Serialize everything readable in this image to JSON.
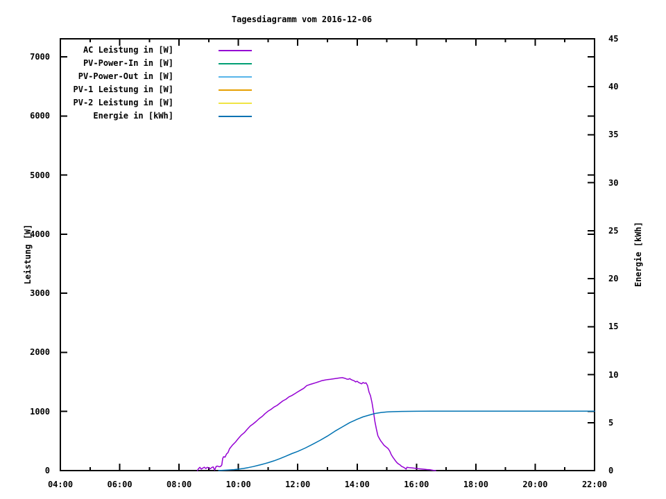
{
  "chart_data": {
    "type": "line",
    "title": "Tagesdiagramm vom 2016-12-06",
    "xlabel": "",
    "ylabel": "Leistung [W]",
    "y2label": "Energie [kWh]",
    "xlim": [
      4,
      22
    ],
    "ylim": [
      0,
      7305
    ],
    "y2lim": [
      0,
      45
    ],
    "grid": false,
    "legend_position": "top-left-inside",
    "x_ticks": {
      "values": [
        4,
        6,
        8,
        10,
        12,
        14,
        16,
        18,
        20,
        22
      ],
      "labels": [
        "04:00",
        "06:00",
        "08:00",
        "10:00",
        "12:00",
        "14:00",
        "16:00",
        "18:00",
        "20:00",
        "22:00"
      ]
    },
    "x_minor_ticks": [
      5,
      7,
      9,
      11,
      13,
      15,
      17,
      19,
      21
    ],
    "y_ticks": {
      "values": [
        0,
        1000,
        2000,
        3000,
        4000,
        5000,
        6000,
        7000
      ],
      "labels": [
        "0",
        "1000",
        "2000",
        "3000",
        "4000",
        "5000",
        "6000",
        "7000"
      ]
    },
    "y2_ticks": {
      "values": [
        0,
        5,
        10,
        15,
        20,
        25,
        30,
        35,
        40,
        45
      ],
      "labels": [
        "0",
        "5",
        "10",
        "15",
        "20",
        "25",
        "30",
        "35",
        "40",
        "45"
      ]
    },
    "series": [
      {
        "name": "AC Leistung in [W]",
        "color": "#9400d3",
        "axis": "y1",
        "points": [
          [
            8.62,
            0
          ],
          [
            8.65,
            30
          ],
          [
            8.7,
            55
          ],
          [
            8.75,
            25
          ],
          [
            8.8,
            42
          ],
          [
            8.85,
            58
          ],
          [
            8.9,
            35
          ],
          [
            8.95,
            55
          ],
          [
            9.0,
            45
          ],
          [
            9.05,
            30
          ],
          [
            9.1,
            52
          ],
          [
            9.15,
            62
          ],
          [
            9.2,
            8
          ],
          [
            9.25,
            70
          ],
          [
            9.3,
            76
          ],
          [
            9.35,
            64
          ],
          [
            9.4,
            70
          ],
          [
            9.44,
            95
          ],
          [
            9.47,
            205
          ],
          [
            9.5,
            235
          ],
          [
            9.55,
            228
          ],
          [
            9.6,
            282
          ],
          [
            9.65,
            305
          ],
          [
            9.7,
            368
          ],
          [
            9.8,
            432
          ],
          [
            9.9,
            482
          ],
          [
            10.0,
            545
          ],
          [
            10.1,
            600
          ],
          [
            10.2,
            642
          ],
          [
            10.3,
            700
          ],
          [
            10.4,
            755
          ],
          [
            10.5,
            792
          ],
          [
            10.6,
            832
          ],
          [
            10.7,
            880
          ],
          [
            10.8,
            916
          ],
          [
            10.9,
            965
          ],
          [
            11.0,
            1005
          ],
          [
            11.1,
            1036
          ],
          [
            11.2,
            1075
          ],
          [
            11.3,
            1102
          ],
          [
            11.4,
            1142
          ],
          [
            11.5,
            1180
          ],
          [
            11.6,
            1206
          ],
          [
            11.7,
            1246
          ],
          [
            11.8,
            1270
          ],
          [
            11.9,
            1300
          ],
          [
            12.0,
            1332
          ],
          [
            12.1,
            1362
          ],
          [
            12.2,
            1392
          ],
          [
            12.3,
            1438
          ],
          [
            12.4,
            1455
          ],
          [
            12.5,
            1470
          ],
          [
            12.6,
            1486
          ],
          [
            12.7,
            1502
          ],
          [
            12.8,
            1520
          ],
          [
            12.9,
            1530
          ],
          [
            13.0,
            1540
          ],
          [
            13.1,
            1546
          ],
          [
            13.2,
            1552
          ],
          [
            13.3,
            1560
          ],
          [
            13.4,
            1566
          ],
          [
            13.5,
            1572
          ],
          [
            13.6,
            1560
          ],
          [
            13.65,
            1548
          ],
          [
            13.7,
            1544
          ],
          [
            13.75,
            1556
          ],
          [
            13.8,
            1540
          ],
          [
            13.85,
            1528
          ],
          [
            13.9,
            1520
          ],
          [
            13.95,
            1500
          ],
          [
            14.0,
            1512
          ],
          [
            14.05,
            1492
          ],
          [
            14.1,
            1480
          ],
          [
            14.15,
            1468
          ],
          [
            14.2,
            1490
          ],
          [
            14.25,
            1478
          ],
          [
            14.3,
            1484
          ],
          [
            14.35,
            1438
          ],
          [
            14.4,
            1330
          ],
          [
            14.45,
            1268
          ],
          [
            14.5,
            1150
          ],
          [
            14.55,
            1000
          ],
          [
            14.6,
            830
          ],
          [
            14.65,
            700
          ],
          [
            14.7,
            590
          ],
          [
            14.75,
            540
          ],
          [
            14.8,
            500
          ],
          [
            14.85,
            468
          ],
          [
            14.9,
            432
          ],
          [
            14.95,
            410
          ],
          [
            15.0,
            390
          ],
          [
            15.05,
            368
          ],
          [
            15.1,
            330
          ],
          [
            15.15,
            270
          ],
          [
            15.2,
            230
          ],
          [
            15.25,
            195
          ],
          [
            15.3,
            160
          ],
          [
            15.35,
            130
          ],
          [
            15.4,
            110
          ],
          [
            15.45,
            95
          ],
          [
            15.5,
            72
          ],
          [
            15.55,
            60
          ],
          [
            15.6,
            45
          ],
          [
            15.65,
            25
          ],
          [
            15.68,
            56
          ],
          [
            15.75,
            50
          ],
          [
            15.85,
            46
          ],
          [
            15.95,
            40
          ],
          [
            16.05,
            32
          ],
          [
            16.15,
            28
          ],
          [
            16.25,
            24
          ],
          [
            16.35,
            18
          ],
          [
            16.45,
            14
          ],
          [
            16.55,
            6
          ],
          [
            16.65,
            0
          ]
        ]
      },
      {
        "name": "PV-Power-In in [W]",
        "color": "#009e73",
        "axis": "y1",
        "points": []
      },
      {
        "name": "PV-Power-Out in [W]",
        "color": "#56b4e9",
        "axis": "y1",
        "points": []
      },
      {
        "name": "PV-1 Leistung in [W]",
        "color": "#e69f00",
        "axis": "y1",
        "points": []
      },
      {
        "name": "PV-2 Leistung in [W]",
        "color": "#f0e442",
        "axis": "y1",
        "points": []
      },
      {
        "name": "Energie in [kWh]",
        "color": "#0072b2",
        "axis": "y2",
        "points": [
          [
            9.33,
            0
          ],
          [
            9.6,
            0.05
          ],
          [
            9.85,
            0.1
          ],
          [
            10.0,
            0.15
          ],
          [
            10.16,
            0.22
          ],
          [
            10.33,
            0.31
          ],
          [
            10.5,
            0.42
          ],
          [
            10.66,
            0.54
          ],
          [
            10.8,
            0.65
          ],
          [
            11.0,
            0.82
          ],
          [
            11.2,
            1.02
          ],
          [
            11.4,
            1.25
          ],
          [
            11.6,
            1.5
          ],
          [
            11.8,
            1.77
          ],
          [
            12.0,
            2.0
          ],
          [
            12.25,
            2.35
          ],
          [
            12.5,
            2.74
          ],
          [
            12.75,
            3.15
          ],
          [
            13.0,
            3.6
          ],
          [
            13.25,
            4.1
          ],
          [
            13.5,
            4.55
          ],
          [
            13.75,
            5.0
          ],
          [
            14.0,
            5.35
          ],
          [
            14.2,
            5.6
          ],
          [
            14.4,
            5.78
          ],
          [
            14.6,
            5.95
          ],
          [
            14.8,
            6.05
          ],
          [
            15.0,
            6.11
          ],
          [
            15.2,
            6.14
          ],
          [
            15.5,
            6.17
          ],
          [
            16.0,
            6.18
          ],
          [
            16.5,
            6.19
          ],
          [
            17.0,
            6.19
          ],
          [
            18.0,
            6.19
          ],
          [
            19.0,
            6.19
          ],
          [
            20.0,
            6.19
          ],
          [
            21.0,
            6.19
          ],
          [
            22.0,
            6.19
          ]
        ]
      }
    ],
    "frame_color": "#000000",
    "background_color": "#ffffff"
  }
}
